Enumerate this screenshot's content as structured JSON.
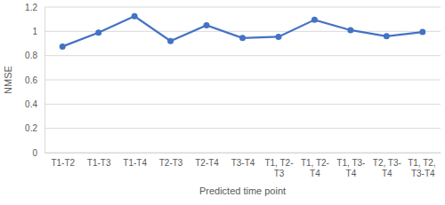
{
  "chart_data": {
    "type": "line",
    "x_label": "Predicted time point",
    "y_label": "NMSE",
    "categories": [
      "T1-T2",
      "T1-T3",
      "T1-T4",
      "T2-T3",
      "T2-T4",
      "T3-T4",
      "T1, T2-T3",
      "T1, T2-T4",
      "T1, T3-T4",
      "T2, T3-T4",
      "T1, T2, T3-T4"
    ],
    "values": [
      0.875,
      0.99,
      1.125,
      0.92,
      1.05,
      0.945,
      0.955,
      1.095,
      1.01,
      0.96,
      0.995
    ],
    "color": "#4472c4",
    "marker": "circle",
    "ylim": [
      0,
      1.2
    ],
    "yticks": [
      0,
      0.2,
      0.4,
      0.6,
      0.8,
      1,
      1.2
    ],
    "grid": true
  }
}
